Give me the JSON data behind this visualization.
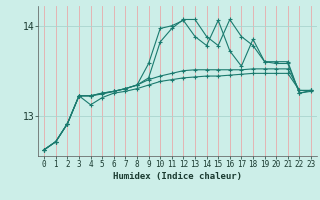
{
  "title": "",
  "xlabel": "Humidex (Indice chaleur)",
  "ylabel": "",
  "bg_color": "#cceee8",
  "line_color": "#1a7a6e",
  "grid_color_v": "#e8aaaa",
  "grid_color_h": "#aad4ce",
  "x_ticks": [
    0,
    1,
    2,
    3,
    4,
    5,
    6,
    7,
    8,
    9,
    10,
    11,
    12,
    13,
    14,
    15,
    16,
    17,
    18,
    19,
    20,
    21,
    22,
    23
  ],
  "y_ticks": [
    13,
    14
  ],
  "ylim": [
    12.55,
    14.22
  ],
  "xlim": [
    -0.5,
    23.5
  ],
  "series": [
    {
      "x": [
        0,
        1,
        2,
        3,
        4,
        5,
        6,
        7,
        8,
        9,
        10,
        11,
        12,
        13,
        14,
        15,
        16,
        17,
        18,
        19,
        20,
        21,
        22,
        23
      ],
      "y": [
        12.62,
        12.71,
        12.91,
        13.22,
        13.22,
        13.25,
        13.27,
        13.3,
        13.34,
        13.58,
        13.97,
        14.0,
        14.06,
        13.88,
        13.78,
        14.06,
        13.72,
        13.55,
        13.85,
        13.6,
        13.58,
        13.58,
        13.25,
        13.28
      ]
    },
    {
      "x": [
        0,
        1,
        2,
        3,
        4,
        5,
        6,
        7,
        8,
        9,
        10,
        11,
        12,
        13,
        14,
        15,
        16,
        17,
        18,
        19,
        20,
        21,
        22,
        23
      ],
      "y": [
        12.62,
        12.71,
        12.91,
        13.22,
        13.12,
        13.2,
        13.25,
        13.27,
        13.3,
        13.34,
        13.38,
        13.4,
        13.42,
        13.43,
        13.44,
        13.44,
        13.45,
        13.46,
        13.47,
        13.47,
        13.47,
        13.47,
        13.28,
        13.28
      ]
    },
    {
      "x": [
        0,
        1,
        2,
        3,
        4,
        5,
        6,
        7,
        8,
        9,
        10,
        11,
        12,
        13,
        14,
        15,
        16,
        17,
        18,
        19,
        20,
        21,
        22,
        23
      ],
      "y": [
        12.62,
        12.71,
        12.91,
        13.22,
        13.22,
        13.24,
        13.27,
        13.3,
        13.34,
        13.4,
        13.44,
        13.47,
        13.5,
        13.51,
        13.51,
        13.51,
        13.51,
        13.51,
        13.52,
        13.52,
        13.52,
        13.52,
        13.28,
        13.28
      ]
    },
    {
      "x": [
        0,
        1,
        2,
        3,
        4,
        5,
        6,
        7,
        8,
        9,
        10,
        11,
        12,
        13,
        14,
        15,
        16,
        17,
        18,
        19,
        20,
        21,
        22,
        23
      ],
      "y": [
        12.62,
        12.71,
        12.91,
        13.22,
        13.22,
        13.25,
        13.27,
        13.3,
        13.34,
        13.42,
        13.82,
        13.97,
        14.07,
        14.07,
        13.88,
        13.78,
        14.07,
        13.88,
        13.78,
        13.6,
        13.6,
        13.6,
        13.25,
        13.27
      ]
    }
  ]
}
